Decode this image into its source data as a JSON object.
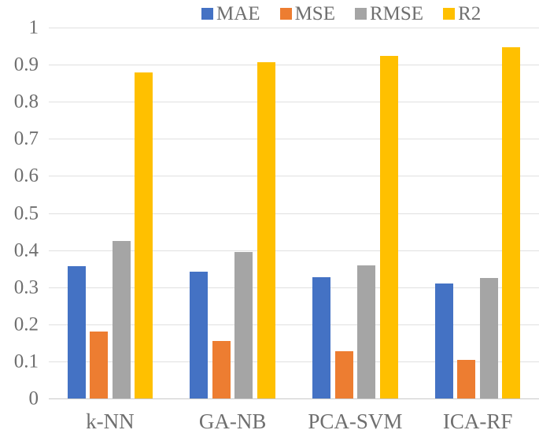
{
  "chart_data": {
    "type": "bar",
    "title": "",
    "xlabel": "",
    "ylabel": "",
    "categories": [
      "k-NN",
      "GA-NB",
      "PCA-SVM",
      "ICA-RF"
    ],
    "series": [
      {
        "name": "MAE",
        "color": "#4472C4",
        "values": [
          0.356,
          0.342,
          0.327,
          0.31
        ]
      },
      {
        "name": "MSE",
        "color": "#ED7D31",
        "values": [
          0.18,
          0.156,
          0.128,
          0.105
        ]
      },
      {
        "name": "RMSE",
        "color": "#A5A5A5",
        "values": [
          0.424,
          0.395,
          0.358,
          0.324
        ]
      },
      {
        "name": "R2",
        "color": "#FFC000",
        "values": [
          0.88,
          0.906,
          0.924,
          0.948
        ]
      }
    ],
    "ylim": [
      0,
      1
    ],
    "yticks": [
      "1",
      "0.9",
      "0.8",
      "0.7",
      "0.6",
      "0.5",
      "0.4",
      "0.3",
      "0.2",
      "0.1",
      "0"
    ],
    "grid": true,
    "legend_position": "top"
  },
  "colors": {
    "background": "#ffffff",
    "text": "#6f6f6f",
    "gridline": "#e0e0e0",
    "axis_line": "#c9c9c9"
  }
}
